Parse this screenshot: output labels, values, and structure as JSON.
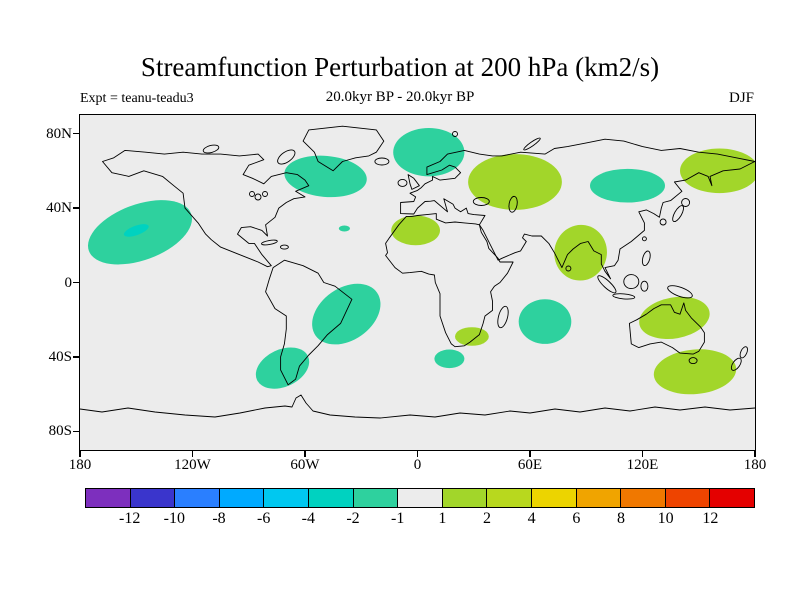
{
  "title": "Streamfunction Perturbation at 200 hPa (km2/s)",
  "header": {
    "experiment": "Expt = teanu-teadu3",
    "difference": "20.0kyr BP - 20.0kyr BP",
    "season": "DJF"
  },
  "axes": {
    "lat_labels": [
      "80N",
      "40N",
      "0",
      "40S",
      "80S"
    ],
    "lat_values": [
      80,
      40,
      0,
      -40,
      -80
    ],
    "lon_labels": [
      "180",
      "120W",
      "60W",
      "0",
      "60E",
      "120E",
      "180"
    ],
    "lon_values": [
      -180,
      -120,
      -60,
      0,
      60,
      120,
      180
    ]
  },
  "chart_data": {
    "type": "heatmap",
    "subtype": "filled-contour anomaly map on world coastline",
    "title": "Streamfunction Perturbation at 200 hPa (km2/s)",
    "experiment": "teanu-teadu3",
    "period": "20.0kyr BP - 20.0kyr BP",
    "season": "DJF",
    "units": "km2/s",
    "projection": "equirectangular",
    "lon_range": [
      -180,
      180
    ],
    "lat_range": [
      -90,
      90
    ],
    "map_background": "#ececec",
    "coastline_color": "#000000",
    "colorbar": {
      "levels": [
        -12,
        -10,
        -8,
        -6,
        -4,
        -2,
        -1,
        1,
        2,
        4,
        6,
        8,
        10,
        12
      ],
      "colors": [
        "#7d2fbe",
        "#3a35cc",
        "#2a7fff",
        "#00aaff",
        "#00c8f0",
        "#00d2c0",
        "#2ed19e",
        "#ececec",
        "#a2d62a",
        "#b8d81e",
        "#ecd400",
        "#f0a400",
        "#f07800",
        "#ee4400",
        "#e40000"
      ]
    },
    "anomalies": [
      {
        "region": "North Pacific",
        "value_range": "-2 to -1",
        "color": "#2ed19e",
        "lon": -148,
        "lat": 27,
        "rx_deg": 29,
        "ry_deg": 15,
        "rot": -20
      },
      {
        "region": "North Pacific core",
        "value_range": "-4 to -2",
        "color": "#00d2c0",
        "lon": -150,
        "lat": 28,
        "rx_deg": 7,
        "ry_deg": 2.5,
        "rot": -20
      },
      {
        "region": "South of Greenland North Atlantic",
        "value_range": "-2 to -1",
        "color": "#2ed19e",
        "lon": -49,
        "lat": 57,
        "rx_deg": 22,
        "ry_deg": 11,
        "rot": 5
      },
      {
        "region": "Scandinavia Norwegian Sea",
        "value_range": "-2 to -1",
        "color": "#2ed19e",
        "lon": 6,
        "lat": 70,
        "rx_deg": 19,
        "ry_deg": 13,
        "rot": 0
      },
      {
        "region": "Northeast Asia",
        "value_range": "-2 to -1",
        "color": "#2ed19e",
        "lon": 112,
        "lat": 52,
        "rx_deg": 20,
        "ry_deg": 9,
        "rot": 0
      },
      {
        "region": "Subtropical North Atlantic speck",
        "value_range": "-2 to -1",
        "color": "#2ed19e",
        "lon": -39,
        "lat": 29,
        "rx_deg": 3,
        "ry_deg": 1.6,
        "rot": 0
      },
      {
        "region": "Eastern South America",
        "value_range": "-2 to -1",
        "color": "#2ed19e",
        "lon": -38,
        "lat": -17,
        "rx_deg": 20,
        "ry_deg": 14,
        "rot": -35
      },
      {
        "region": "Southern South America",
        "value_range": "-2 to -1",
        "color": "#2ed19e",
        "lon": -72,
        "lat": -46,
        "rx_deg": 15,
        "ry_deg": 10,
        "rot": -25
      },
      {
        "region": "Central Indian Ocean",
        "value_range": "-2 to -1",
        "color": "#2ed19e",
        "lon": 68,
        "lat": -21,
        "rx_deg": 14,
        "ry_deg": 12,
        "rot": 0
      },
      {
        "region": "South of South Africa",
        "value_range": "-2 to -1",
        "color": "#2ed19e",
        "lon": 17,
        "lat": -41,
        "rx_deg": 8,
        "ry_deg": 5,
        "rot": 0
      },
      {
        "region": "Central Asia",
        "value_range": "1 to 2",
        "color": "#a2d62a",
        "lon": 52,
        "lat": 54,
        "rx_deg": 25,
        "ry_deg": 15,
        "rot": 0
      },
      {
        "region": "North Africa Mediterranean",
        "value_range": "1 to 2",
        "color": "#a2d62a",
        "lon": -1,
        "lat": 28,
        "rx_deg": 13,
        "ry_deg": 8,
        "rot": 0
      },
      {
        "region": "India Southeast Asia",
        "value_range": "1 to 2",
        "color": "#a2d62a",
        "lon": 87,
        "lat": 16,
        "rx_deg": 14,
        "ry_deg": 15,
        "rot": 10
      },
      {
        "region": "Southeastern Africa",
        "value_range": "1 to 2",
        "color": "#a2d62a",
        "lon": 29,
        "lat": -29,
        "rx_deg": 9,
        "ry_deg": 5,
        "rot": 0
      },
      {
        "region": "Australia",
        "value_range": "1 to 2",
        "color": "#a2d62a",
        "lon": 137,
        "lat": -19,
        "rx_deg": 19,
        "ry_deg": 11,
        "rot": -10
      },
      {
        "region": "South of Australia Tasman Sea",
        "value_range": "1 to 2",
        "color": "#a2d62a",
        "lon": 148,
        "lat": -48,
        "rx_deg": 22,
        "ry_deg": 12,
        "rot": -5
      },
      {
        "region": "Bering Sea Alaska",
        "value_range": "1 to 2",
        "color": "#a2d62a",
        "lon": 161,
        "lat": 60,
        "rx_deg": 21,
        "ry_deg": 12,
        "rot": 0
      }
    ]
  }
}
